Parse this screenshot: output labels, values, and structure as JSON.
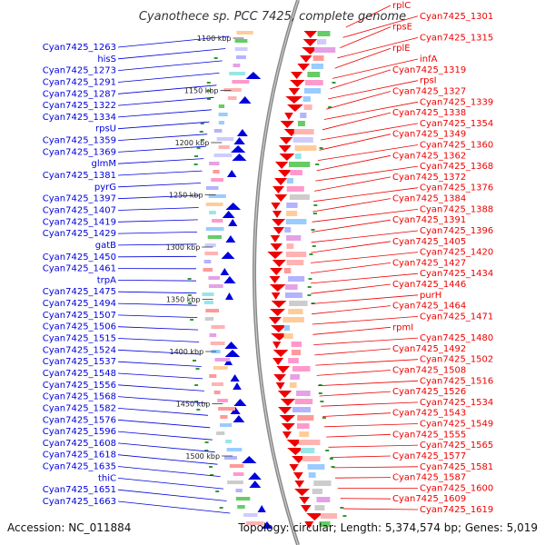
{
  "title": "Cyanothece sp. PCC 7425, complete genome",
  "footer": {
    "accession": "Accession: NC_011884",
    "summary": "Topology: circular; Length: 5,374,574 bp; Genes: 5,019"
  },
  "colors": {
    "left_strand": "#0000dd",
    "right_strand": "#ee0000",
    "backbone": "#888888"
  },
  "ticks": [
    "1100 kbp",
    "1150 kbp",
    "1200 kbp",
    "1250 kbp",
    "1300 kbp",
    "1350 kbp",
    "1400 kbp",
    "1450 kbp",
    "1500 kbp"
  ],
  "left_labels": [
    "Cyan7425_1263",
    "hisS",
    "Cyan7425_1273",
    "Cyan7425_1291",
    "Cyan7425_1287",
    "Cyan7425_1322",
    "Cyan7425_1334",
    "rpsU",
    "Cyan7425_1359",
    "Cyan7425_1369",
    "glmM",
    "Cyan7425_1381",
    "pyrG",
    "Cyan7425_1397",
    "Cyan7425_1407",
    "Cyan7425_1419",
    "Cyan7425_1429",
    "gatB",
    "Cyan7425_1450",
    "Cyan7425_1461",
    "trpA",
    "Cyan7425_1475",
    "Cyan7425_1494",
    "Cyan7425_1507",
    "Cyan7425_1506",
    "Cyan7425_1515",
    "Cyan7425_1524",
    "Cyan7425_1537",
    "Cyan7425_1548",
    "Cyan7425_1556",
    "Cyan7425_1568",
    "Cyan7425_1582",
    "Cyan7425_1576",
    "Cyan7425_1596",
    "Cyan7425_1608",
    "Cyan7425_1618",
    "Cyan7425_1635",
    "thiC",
    "Cyan7425_1651",
    "Cyan7425_1663"
  ],
  "right_labels": [
    "rplC",
    "Cyan7425_1301",
    "rpsE",
    "Cyan7425_1315",
    "rplE",
    "infA",
    "Cyan7425_1319",
    "rpsI",
    "Cyan7425_1327",
    "Cyan7425_1339",
    "Cyan7425_1338",
    "Cyan7425_1354",
    "Cyan7425_1349",
    "Cyan7425_1360",
    "Cyan7425_1362",
    "Cyan7425_1368",
    "Cyan7425_1372",
    "Cyan7425_1376",
    "Cyan7425_1384",
    "Cyan7425_1388",
    "Cyan7425_1391",
    "Cyan7425_1396",
    "Cyan7425_1405",
    "Cyan7425_1420",
    "Cyan7425_1427",
    "Cyan7425_1434",
    "Cyan7425_1446",
    "purH",
    "Cyan7425_1464",
    "Cyan7425_1471",
    "rpmI",
    "Cyan7425_1480",
    "Cyan7425_1492",
    "Cyan7425_1502",
    "Cyan7425_1508",
    "Cyan7425_1516",
    "Cyan7425_1526",
    "Cyan7425_1534",
    "Cyan7425_1543",
    "Cyan7425_1549",
    "Cyan7425_1555",
    "Cyan7425_1565",
    "Cyan7425_1577",
    "Cyan7425_1581",
    "Cyan7425_1587",
    "Cyan7425_1600",
    "Cyan7425_1609",
    "Cyan7425_1619"
  ]
}
